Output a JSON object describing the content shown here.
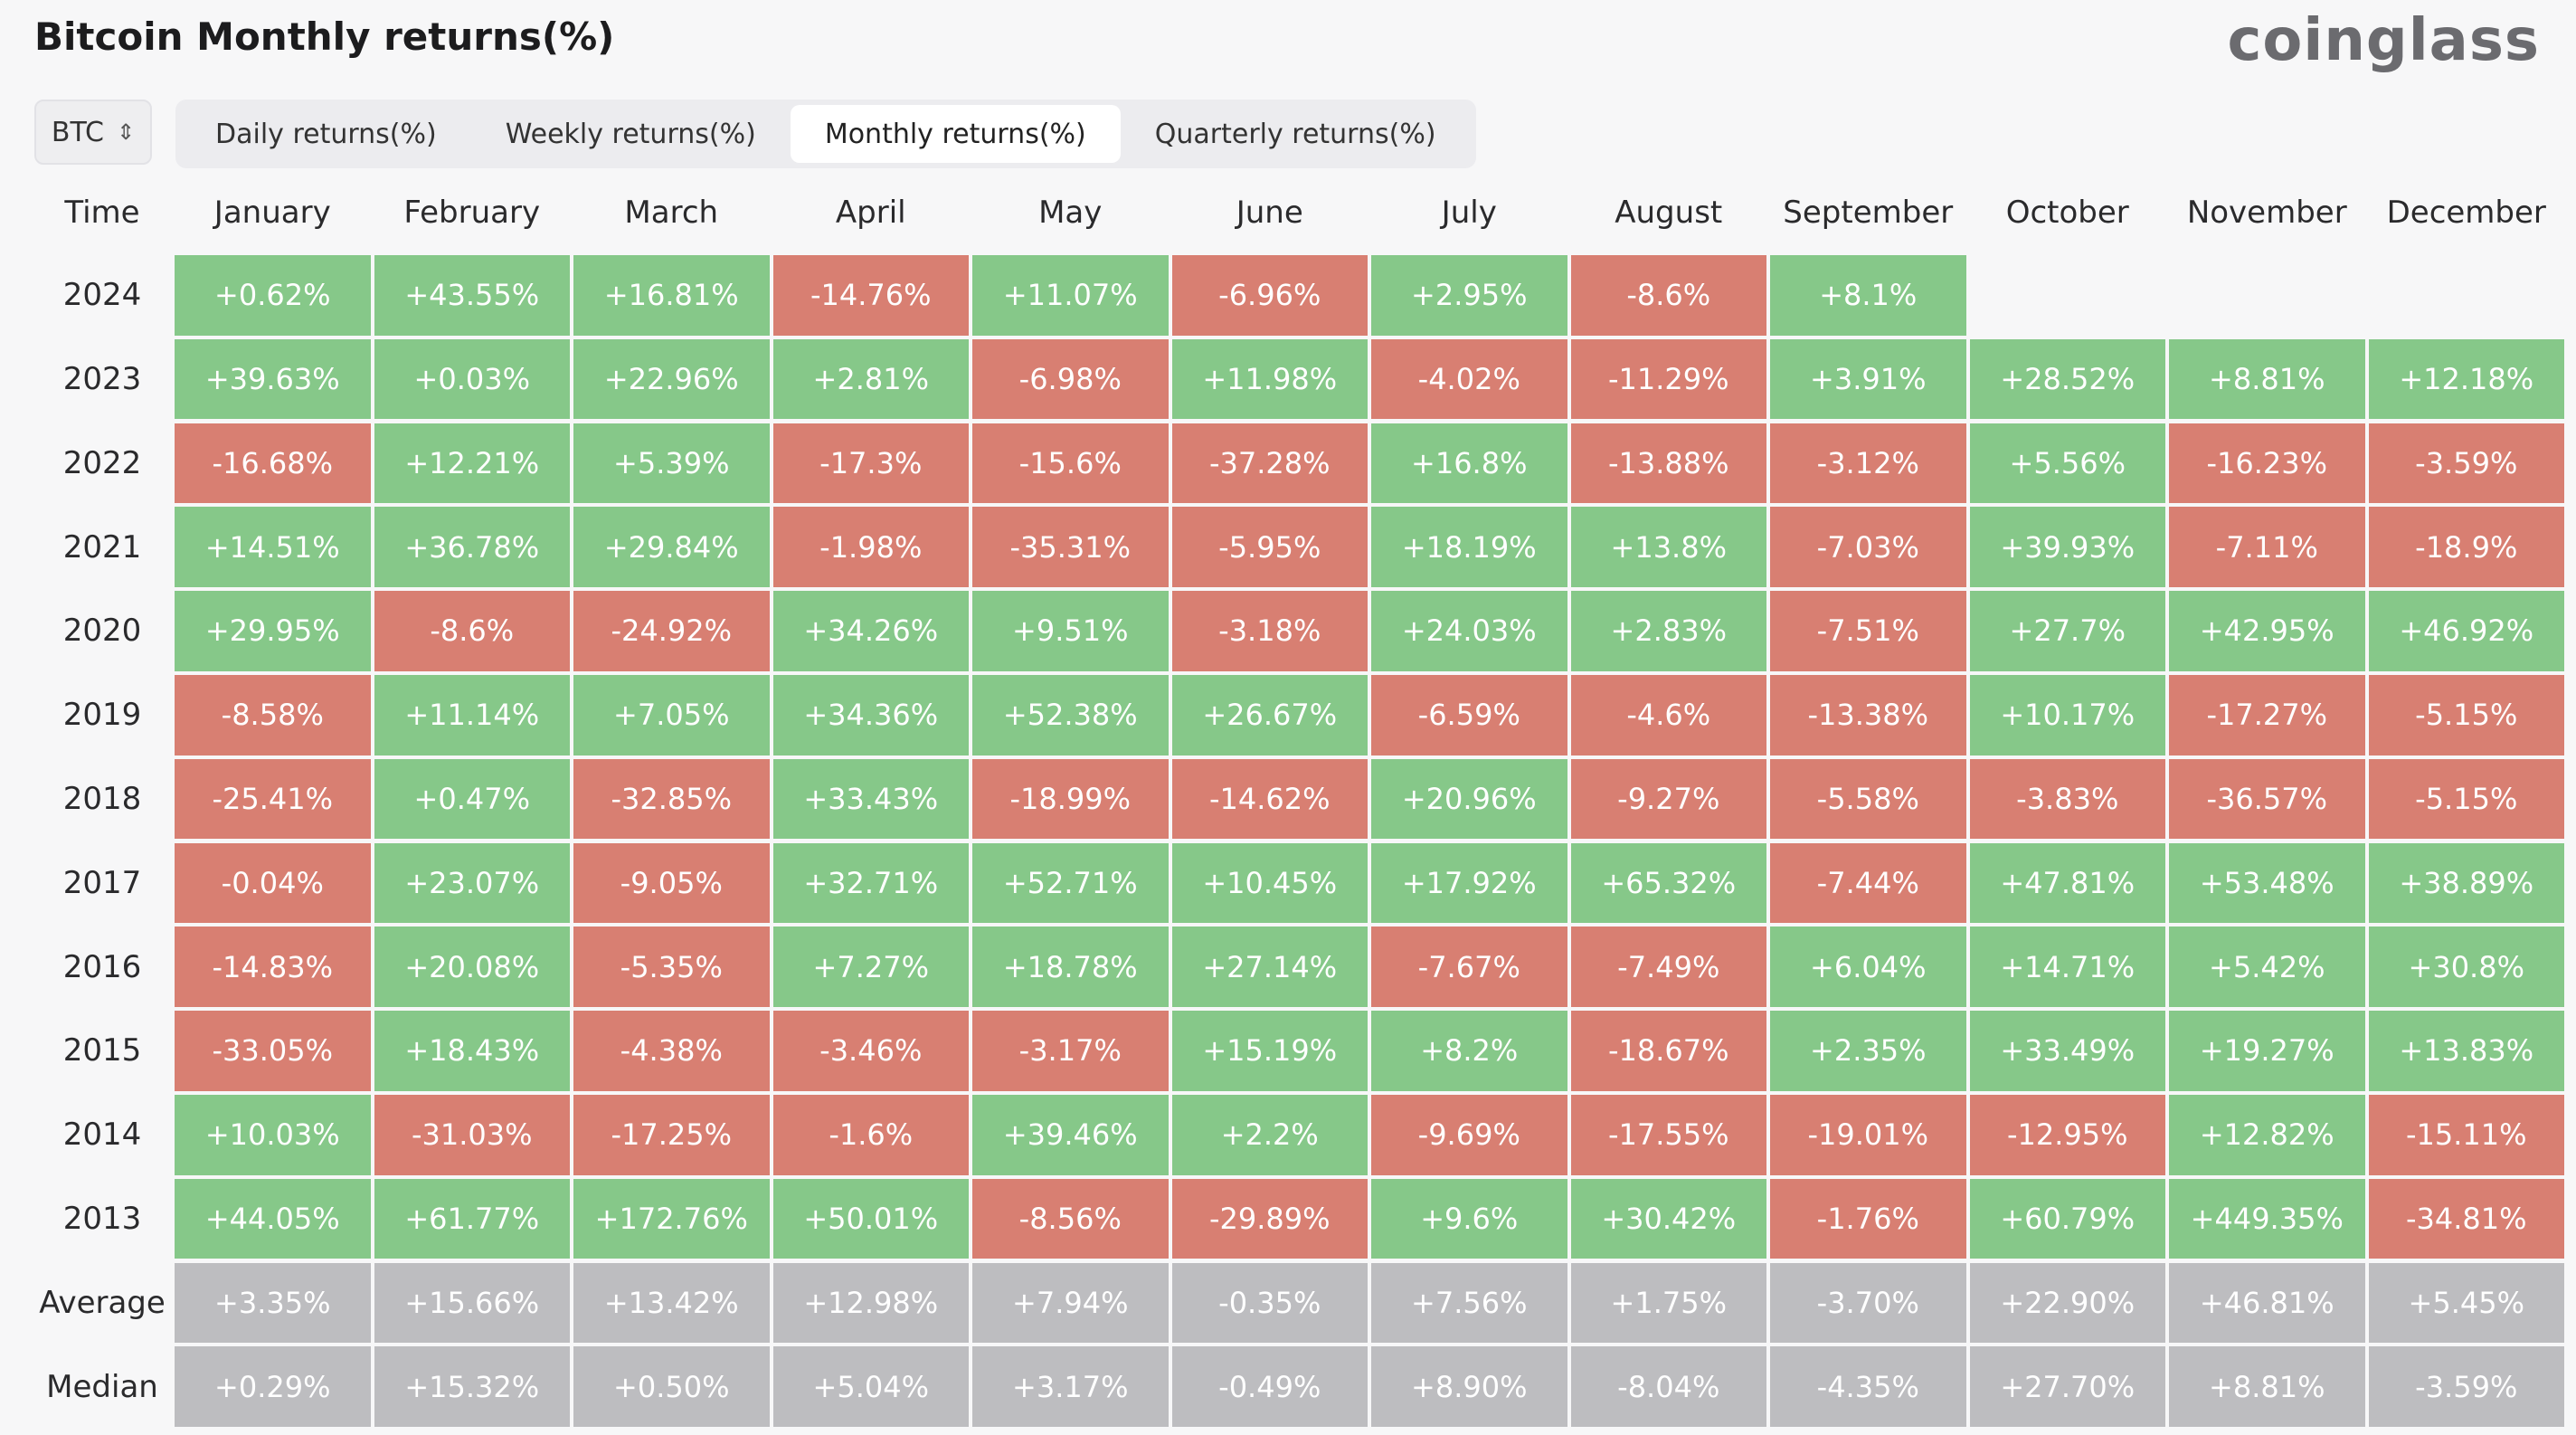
{
  "header": {
    "title": "Bitcoin Monthly returns(%)",
    "brand": "coinglass"
  },
  "controls": {
    "asset": "BTC",
    "tabs": [
      {
        "label": "Daily returns(%)",
        "active": false
      },
      {
        "label": "Weekly returns(%)",
        "active": false
      },
      {
        "label": "Monthly returns(%)",
        "active": true
      },
      {
        "label": "Quarterly returns(%)",
        "active": false
      }
    ]
  },
  "colors": {
    "positive": "#86c889",
    "negative": "#d87f72",
    "summary": "#bdbdc0"
  },
  "chart_data": {
    "type": "heatmap",
    "row_header": "Time",
    "columns": [
      "January",
      "February",
      "March",
      "April",
      "May",
      "June",
      "July",
      "August",
      "September",
      "October",
      "November",
      "December"
    ],
    "rows": [
      {
        "label": "2024",
        "values": [
          "+0.62%",
          "+43.55%",
          "+16.81%",
          "-14.76%",
          "+11.07%",
          "-6.96%",
          "+2.95%",
          "-8.6%",
          "+8.1%",
          "",
          "",
          ""
        ]
      },
      {
        "label": "2023",
        "values": [
          "+39.63%",
          "+0.03%",
          "+22.96%",
          "+2.81%",
          "-6.98%",
          "+11.98%",
          "-4.02%",
          "-11.29%",
          "+3.91%",
          "+28.52%",
          "+8.81%",
          "+12.18%"
        ]
      },
      {
        "label": "2022",
        "values": [
          "-16.68%",
          "+12.21%",
          "+5.39%",
          "-17.3%",
          "-15.6%",
          "-37.28%",
          "+16.8%",
          "-13.88%",
          "-3.12%",
          "+5.56%",
          "-16.23%",
          "-3.59%"
        ]
      },
      {
        "label": "2021",
        "values": [
          "+14.51%",
          "+36.78%",
          "+29.84%",
          "-1.98%",
          "-35.31%",
          "-5.95%",
          "+18.19%",
          "+13.8%",
          "-7.03%",
          "+39.93%",
          "-7.11%",
          "-18.9%"
        ]
      },
      {
        "label": "2020",
        "values": [
          "+29.95%",
          "-8.6%",
          "-24.92%",
          "+34.26%",
          "+9.51%",
          "-3.18%",
          "+24.03%",
          "+2.83%",
          "-7.51%",
          "+27.7%",
          "+42.95%",
          "+46.92%"
        ]
      },
      {
        "label": "2019",
        "values": [
          "-8.58%",
          "+11.14%",
          "+7.05%",
          "+34.36%",
          "+52.38%",
          "+26.67%",
          "-6.59%",
          "-4.6%",
          "-13.38%",
          "+10.17%",
          "-17.27%",
          "-5.15%"
        ]
      },
      {
        "label": "2018",
        "values": [
          "-25.41%",
          "+0.47%",
          "-32.85%",
          "+33.43%",
          "-18.99%",
          "-14.62%",
          "+20.96%",
          "-9.27%",
          "-5.58%",
          "-3.83%",
          "-36.57%",
          "-5.15%"
        ]
      },
      {
        "label": "2017",
        "values": [
          "-0.04%",
          "+23.07%",
          "-9.05%",
          "+32.71%",
          "+52.71%",
          "+10.45%",
          "+17.92%",
          "+65.32%",
          "-7.44%",
          "+47.81%",
          "+53.48%",
          "+38.89%"
        ]
      },
      {
        "label": "2016",
        "values": [
          "-14.83%",
          "+20.08%",
          "-5.35%",
          "+7.27%",
          "+18.78%",
          "+27.14%",
          "-7.67%",
          "-7.49%",
          "+6.04%",
          "+14.71%",
          "+5.42%",
          "+30.8%"
        ]
      },
      {
        "label": "2015",
        "values": [
          "-33.05%",
          "+18.43%",
          "-4.38%",
          "-3.46%",
          "-3.17%",
          "+15.19%",
          "+8.2%",
          "-18.67%",
          "+2.35%",
          "+33.49%",
          "+19.27%",
          "+13.83%"
        ]
      },
      {
        "label": "2014",
        "values": [
          "+10.03%",
          "-31.03%",
          "-17.25%",
          "-1.6%",
          "+39.46%",
          "+2.2%",
          "-9.69%",
          "-17.55%",
          "-19.01%",
          "-12.95%",
          "+12.82%",
          "-15.11%"
        ]
      },
      {
        "label": "2013",
        "values": [
          "+44.05%",
          "+61.77%",
          "+172.76%",
          "+50.01%",
          "-8.56%",
          "-29.89%",
          "+9.6%",
          "+30.42%",
          "-1.76%",
          "+60.79%",
          "+449.35%",
          "-34.81%"
        ]
      }
    ],
    "summary_rows": [
      {
        "label": "Average",
        "values": [
          "+3.35%",
          "+15.66%",
          "+13.42%",
          "+12.98%",
          "+7.94%",
          "-0.35%",
          "+7.56%",
          "+1.75%",
          "-3.70%",
          "+22.90%",
          "+46.81%",
          "+5.45%"
        ]
      },
      {
        "label": "Median",
        "values": [
          "+0.29%",
          "+15.32%",
          "+0.50%",
          "+5.04%",
          "+3.17%",
          "-0.49%",
          "+8.90%",
          "-8.04%",
          "-4.35%",
          "+27.70%",
          "+8.81%",
          "-3.59%"
        ]
      }
    ]
  }
}
